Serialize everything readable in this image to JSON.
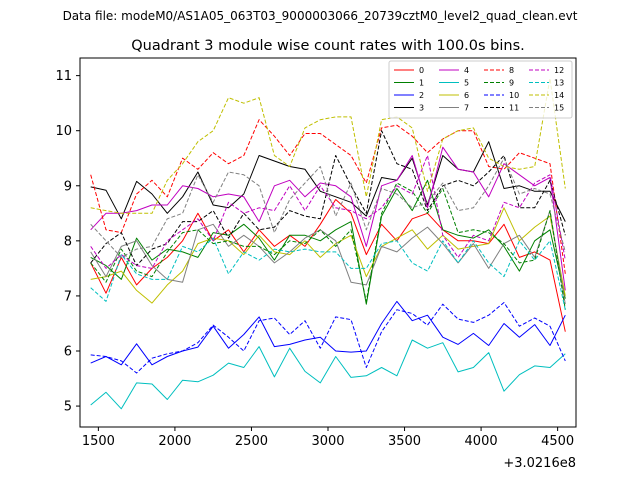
{
  "header": {
    "file_label": "Data file: modeM0/AS1A05_063T03_9000003066_20739cztM0_level2_quad_clean.evt"
  },
  "chart_data": {
    "type": "line",
    "title": "Quadrant 3 module wise count rates with 100.0s bins.",
    "xlabel": "",
    "ylabel": "",
    "x_offset_label": "+3.0216e8",
    "xlim": [
      1380,
      4620
    ],
    "ylim": [
      4.62,
      11.32
    ],
    "x_ticks": [
      1500,
      2000,
      2500,
      3000,
      3500,
      4000,
      4500
    ],
    "y_ticks": [
      5,
      6,
      7,
      8,
      9,
      10,
      11
    ],
    "x": [
      1450,
      1550,
      1650,
      1750,
      1850,
      1950,
      2050,
      2150,
      2250,
      2350,
      2450,
      2550,
      2650,
      2750,
      2850,
      2950,
      3050,
      3150,
      3250,
      3350,
      3450,
      3550,
      3650,
      3750,
      3850,
      3950,
      4050,
      4150,
      4250,
      4350,
      4450,
      4550
    ],
    "legend_position": "top-right",
    "series": [
      {
        "name": "0",
        "color": "#ff0000",
        "dash": "solid",
        "values": [
          7.6,
          7.05,
          7.7,
          7.2,
          7.5,
          7.7,
          8.0,
          8.5,
          8.0,
          8.2,
          7.8,
          8.2,
          7.9,
          8.1,
          7.9,
          8.3,
          8.75,
          8.5,
          7.75,
          8.3,
          8.0,
          8.4,
          8.5,
          8.2,
          8.0,
          8.0,
          7.95,
          8.3,
          7.7,
          7.8,
          7.65,
          6.35
        ]
      },
      {
        "name": "1",
        "color": "#008000",
        "dash": "solid",
        "values": [
          7.7,
          7.55,
          7.3,
          8.05,
          7.65,
          7.85,
          7.8,
          7.7,
          8.15,
          8.1,
          8.3,
          8.05,
          7.65,
          8.1,
          8.1,
          8.0,
          8.2,
          8.35,
          6.85,
          8.45,
          8.95,
          8.55,
          9.1,
          8.2,
          8.1,
          8.05,
          8.2,
          7.9,
          7.45,
          8.0,
          8.2,
          6.95
        ]
      },
      {
        "name": "2",
        "color": "#0000ff",
        "dash": "solid",
        "values": [
          5.78,
          5.9,
          5.75,
          6.13,
          5.75,
          5.9,
          6.0,
          6.07,
          6.45,
          6.05,
          6.3,
          6.62,
          6.08,
          6.12,
          6.2,
          6.25,
          6.0,
          5.98,
          6.0,
          6.5,
          6.9,
          6.55,
          6.65,
          6.25,
          6.12,
          6.32,
          6.1,
          6.5,
          6.25,
          6.48,
          6.1,
          6.65
        ]
      },
      {
        "name": "3",
        "color": "#000000",
        "dash": "solid",
        "values": [
          8.98,
          8.92,
          8.4,
          9.08,
          8.85,
          8.5,
          8.8,
          9.25,
          8.65,
          8.6,
          8.85,
          9.55,
          9.45,
          9.35,
          9.3,
          8.9,
          8.8,
          8.7,
          8.45,
          9.15,
          9.1,
          9.5,
          8.65,
          9.55,
          9.3,
          9.25,
          9.8,
          8.95,
          9.0,
          8.9,
          8.9,
          8.35
        ]
      },
      {
        "name": "4",
        "color": "#c000c0",
        "dash": "solid",
        "values": [
          8.2,
          8.5,
          8.5,
          8.55,
          8.65,
          8.65,
          9.0,
          8.95,
          8.8,
          8.85,
          8.8,
          8.35,
          9.0,
          9.1,
          8.8,
          9.05,
          9.0,
          8.8,
          7.9,
          9.0,
          9.1,
          9.55,
          8.6,
          9.7,
          9.3,
          9.25,
          8.8,
          9.4,
          9.2,
          9.0,
          9.15,
          7.1
        ]
      },
      {
        "name": "5",
        "color": "#00bfbf",
        "dash": "solid",
        "values": [
          5.02,
          5.25,
          4.95,
          5.42,
          5.4,
          5.12,
          5.47,
          5.44,
          5.56,
          5.78,
          5.7,
          6.08,
          5.53,
          6.05,
          5.63,
          5.42,
          5.9,
          5.52,
          5.55,
          5.7,
          5.55,
          6.2,
          6.05,
          6.15,
          5.62,
          5.7,
          5.97,
          5.27,
          5.57,
          5.73,
          5.7,
          5.95
        ]
      },
      {
        "name": "6",
        "color": "#bfbf00",
        "dash": "solid",
        "values": [
          7.3,
          7.35,
          7.45,
          7.1,
          6.87,
          7.2,
          7.45,
          7.95,
          8.05,
          8.0,
          7.75,
          8.1,
          7.8,
          7.75,
          8.0,
          7.7,
          7.95,
          8.1,
          7.35,
          7.9,
          8.05,
          8.2,
          7.85,
          8.1,
          7.85,
          7.9,
          7.95,
          8.6,
          8.0,
          8.25,
          8.45,
          7.0
        ]
      },
      {
        "name": "7",
        "color": "#808080",
        "dash": "solid",
        "values": [
          7.8,
          7.35,
          7.9,
          8.0,
          7.55,
          7.3,
          7.25,
          8.2,
          8.3,
          7.9,
          8.1,
          7.9,
          7.6,
          7.8,
          8.05,
          8.2,
          8.0,
          7.25,
          7.2,
          7.9,
          7.8,
          8.05,
          8.25,
          7.95,
          7.6,
          7.95,
          7.5,
          7.95,
          8.1,
          7.7,
          8.55,
          6.85
        ]
      },
      {
        "name": "8",
        "color": "#ff0000",
        "dash": "dashed",
        "values": [
          9.2,
          8.2,
          8.15,
          8.85,
          9.1,
          8.8,
          9.5,
          9.3,
          9.6,
          9.4,
          9.55,
          10.2,
          9.9,
          9.55,
          9.95,
          9.95,
          9.75,
          9.55,
          9.05,
          10.05,
          10.1,
          9.9,
          9.6,
          9.85,
          10.0,
          10.0,
          9.35,
          9.3,
          9.6,
          9.5,
          9.4,
          7.4
        ]
      },
      {
        "name": "9",
        "color": "#008000",
        "dash": "dashed",
        "values": [
          7.6,
          7.25,
          7.85,
          7.45,
          7.35,
          7.8,
          8.15,
          8.2,
          7.95,
          8.0,
          7.9,
          7.9,
          7.75,
          8.0,
          7.95,
          8.2,
          7.9,
          8.2,
          6.9,
          8.5,
          9.05,
          8.9,
          8.5,
          8.95,
          8.15,
          8.2,
          8.15,
          7.95,
          7.6,
          7.65,
          8.55,
          6.75
        ]
      },
      {
        "name": "10",
        "color": "#0000ff",
        "dash": "dashed",
        "values": [
          5.93,
          5.9,
          5.82,
          5.6,
          5.87,
          5.95,
          6.0,
          6.15,
          6.47,
          6.25,
          6.0,
          6.55,
          6.6,
          6.3,
          6.55,
          6.05,
          6.62,
          6.57,
          5.7,
          6.35,
          6.75,
          6.68,
          6.47,
          6.85,
          6.58,
          6.52,
          6.65,
          6.88,
          6.45,
          6.6,
          6.45,
          5.82
        ]
      },
      {
        "name": "11",
        "color": "#000000",
        "dash": "dashed",
        "values": [
          7.6,
          7.95,
          8.15,
          7.55,
          7.85,
          7.95,
          8.35,
          8.35,
          8.55,
          8.05,
          8.5,
          8.2,
          8.25,
          8.55,
          8.45,
          8.4,
          9.55,
          9.0,
          8.5,
          10.0,
          9.4,
          9.3,
          8.55,
          9.0,
          9.1,
          9.0,
          9.25,
          9.55,
          8.6,
          8.6,
          9.1,
          8.1
        ]
      },
      {
        "name": "12",
        "color": "#c000c0",
        "dash": "dashed",
        "values": [
          7.9,
          7.5,
          7.75,
          7.55,
          7.5,
          8.0,
          8.2,
          8.4,
          8.0,
          8.7,
          8.5,
          8.6,
          8.55,
          9.0,
          8.55,
          9.0,
          8.6,
          8.55,
          8.4,
          8.6,
          9.0,
          8.85,
          9.55,
          8.1,
          7.7,
          8.1,
          8.0,
          8.7,
          8.6,
          9.05,
          9.2,
          7.65
        ]
      },
      {
        "name": "13",
        "color": "#00bfbf",
        "dash": "dashed",
        "values": [
          7.15,
          6.9,
          7.75,
          7.4,
          7.3,
          7.3,
          7.9,
          7.8,
          8.05,
          7.4,
          7.8,
          7.65,
          7.85,
          7.8,
          7.85,
          7.8,
          7.8,
          7.5,
          7.5,
          7.95,
          8.0,
          7.6,
          7.45,
          8.0,
          7.6,
          8.0,
          7.6,
          7.35,
          8.0,
          7.65,
          8.0,
          6.75
        ]
      },
      {
        "name": "14",
        "color": "#bfbf00",
        "dash": "dashed",
        "values": [
          8.6,
          8.55,
          8.5,
          8.5,
          8.5,
          9.1,
          9.4,
          9.8,
          10.0,
          10.6,
          10.5,
          10.6,
          9.55,
          9.35,
          10.05,
          10.2,
          10.25,
          10.25,
          8.8,
          10.2,
          10.25,
          10.05,
          8.9,
          9.85,
          10.0,
          10.05,
          9.5,
          9.35,
          9.3,
          9.35,
          10.95,
          8.95
        ]
      },
      {
        "name": "15",
        "color": "#808080",
        "dash": "dashed",
        "values": [
          8.3,
          8.0,
          7.7,
          7.85,
          7.9,
          8.4,
          8.5,
          9.2,
          8.7,
          9.25,
          9.2,
          9.0,
          8.15,
          8.75,
          9.05,
          9.35,
          8.45,
          9.05,
          8.2,
          8.95,
          8.85,
          8.6,
          8.7,
          9.05,
          8.55,
          8.6,
          9.0,
          9.5,
          8.85,
          8.95,
          8.85,
          7.8
        ]
      }
    ]
  }
}
